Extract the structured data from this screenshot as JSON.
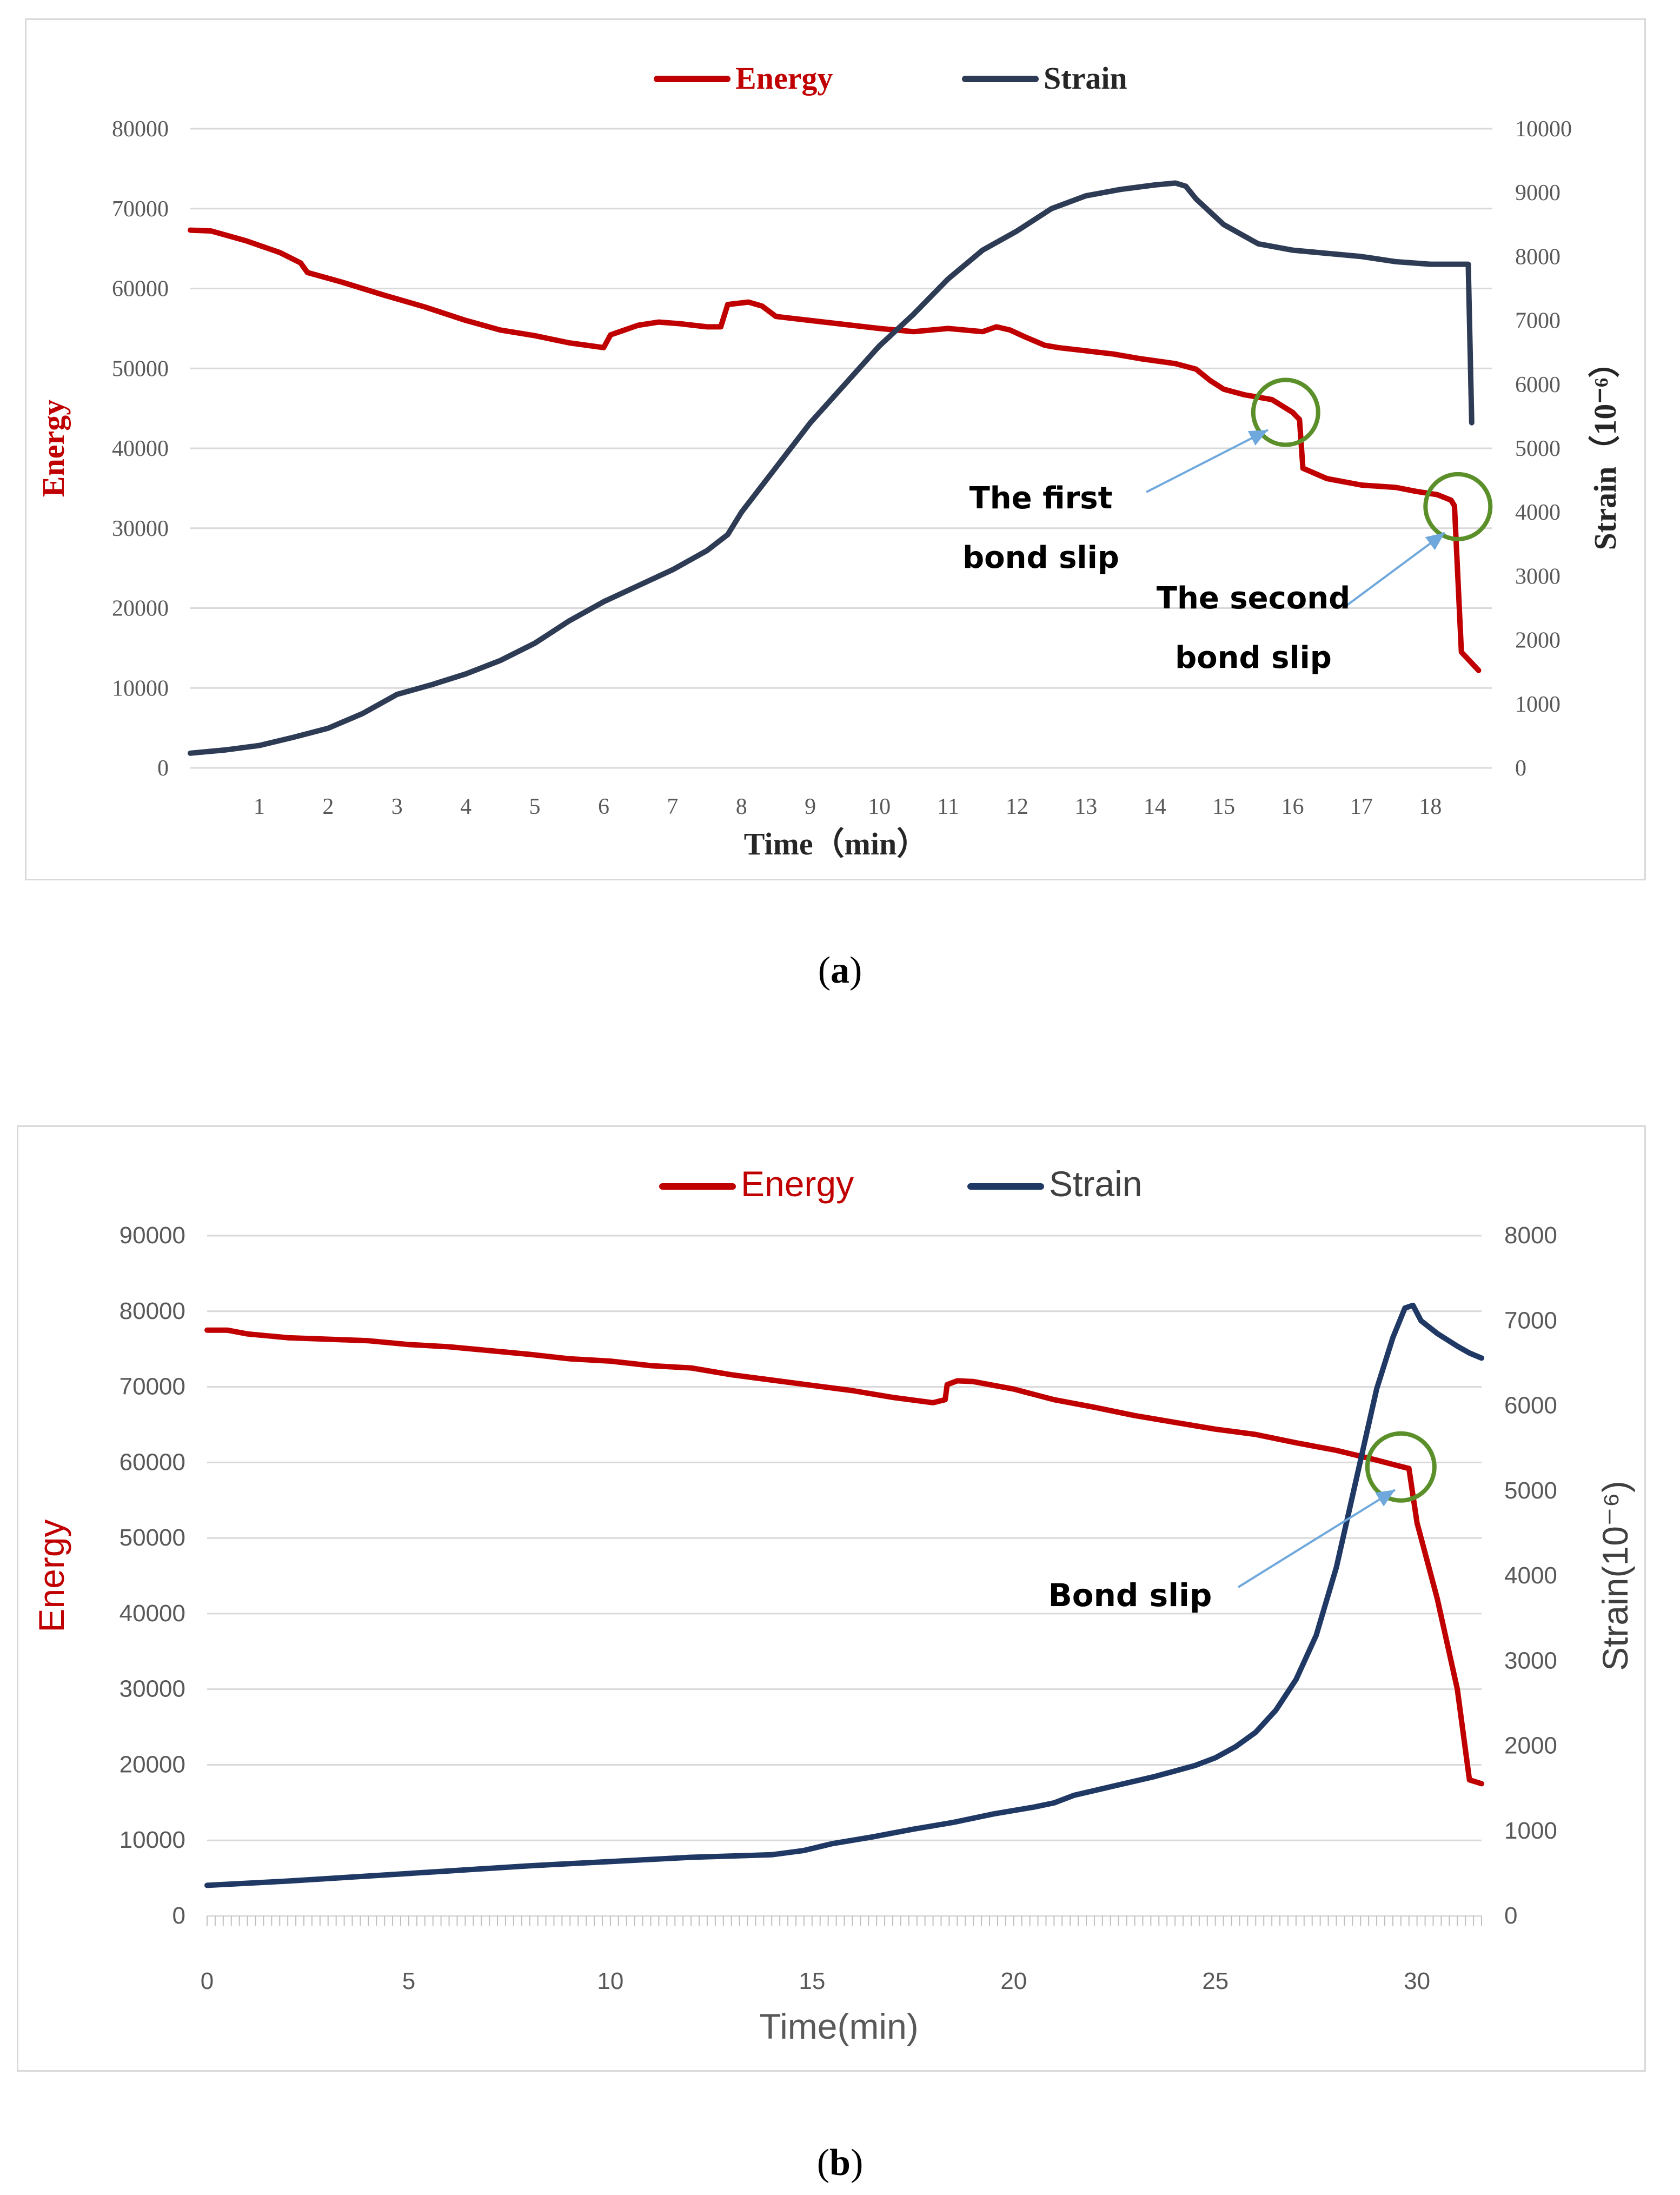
{
  "figure": {
    "caption_a": "a",
    "caption_b": "b"
  },
  "colors": {
    "energy": "#c00000",
    "strain": "#2e3b55",
    "strain_b": "#1f3864",
    "circle": "#5a8f29",
    "arrow": "#6fa8dc",
    "grid": "#d9d9d9",
    "axis_text": "#595959"
  },
  "chart_data": [
    {
      "type": "line",
      "id": "a",
      "xlabel": "Time（min）",
      "ylabel": "Energy",
      "y2label": "Strain（10⁻⁶）",
      "xlim": [
        0,
        18.9
      ],
      "ylim": [
        0,
        80000
      ],
      "y2lim": [
        0,
        10000
      ],
      "xticks": [
        1,
        2,
        3,
        4,
        5,
        6,
        7,
        8,
        9,
        10,
        11,
        12,
        13,
        14,
        15,
        16,
        17,
        18
      ],
      "yticks": [
        0,
        10000,
        20000,
        30000,
        40000,
        50000,
        60000,
        70000,
        80000
      ],
      "y2ticks": [
        0,
        1000,
        2000,
        3000,
        4000,
        5000,
        6000,
        7000,
        8000,
        9000,
        10000
      ],
      "grid": true,
      "legend_placement": "top-center",
      "series": [
        {
          "name": "Energy",
          "axis": "left",
          "x": [
            0,
            0.3,
            0.8,
            1.3,
            1.6,
            1.7,
            2.2,
            2.8,
            3.4,
            4,
            4.5,
            5,
            5.5,
            6,
            6.1,
            6.5,
            6.8,
            7.1,
            7.5,
            7.7,
            7.8,
            8.1,
            8.3,
            8.5,
            8.7,
            9,
            9.5,
            10,
            10.5,
            11,
            11.5,
            11.7,
            11.9,
            12.1,
            12.4,
            12.6,
            13,
            13.4,
            13.8,
            14.3,
            14.6,
            14.8,
            15,
            15.3,
            15.7,
            16,
            16.1,
            16.15,
            16.5,
            17,
            17.5,
            17.8,
            18.1,
            18.3,
            18.35,
            18.45,
            18.7
          ],
          "values": [
            67300,
            67200,
            66000,
            64500,
            63200,
            62000,
            60800,
            59200,
            57700,
            56000,
            54800,
            54100,
            53200,
            52600,
            54200,
            55400,
            55800,
            55600,
            55200,
            55200,
            58000,
            58300,
            57800,
            56500,
            56300,
            56000,
            55500,
            55000,
            54600,
            55000,
            54600,
            55200,
            54800,
            54000,
            52900,
            52600,
            52200,
            51800,
            51200,
            50600,
            49900,
            48500,
            47400,
            46700,
            46100,
            44500,
            43600,
            37500,
            36200,
            35400,
            35100,
            34600,
            34200,
            33500,
            32800,
            14500,
            12200
          ]
        },
        {
          "name": "Strain",
          "axis": "right",
          "x": [
            0,
            0.5,
            1,
            1.5,
            2,
            2.5,
            3,
            3.5,
            4,
            4.5,
            5,
            5.5,
            6,
            6.5,
            7,
            7.5,
            7.8,
            8,
            8.5,
            9,
            9.5,
            10,
            10.5,
            11,
            11.5,
            12,
            12.5,
            13,
            13.5,
            14,
            14.3,
            14.45,
            14.6,
            15,
            15.5,
            16,
            16.5,
            17,
            17.5,
            18,
            18.5,
            18.55,
            18.6
          ],
          "values": [
            230,
            280,
            350,
            480,
            620,
            850,
            1150,
            1300,
            1470,
            1680,
            1950,
            2300,
            2600,
            2850,
            3100,
            3400,
            3650,
            4000,
            4700,
            5400,
            6000,
            6600,
            7100,
            7650,
            8100,
            8400,
            8750,
            8950,
            9050,
            9120,
            9150,
            9100,
            8900,
            8500,
            8200,
            8100,
            8050,
            8000,
            7920,
            7880,
            7880,
            7880,
            5400
          ]
        }
      ],
      "annotations": [
        {
          "text_line1": "The first",
          "text_line2": "bond slip",
          "x": 15.9,
          "y": 44500
        },
        {
          "text_line1": "The second",
          "text_line2": "bond slip",
          "x": 18.4,
          "y": 32700
        }
      ]
    },
    {
      "type": "line",
      "id": "b",
      "xlabel": "Time(min)",
      "ylabel": "Energy",
      "y2label": "Strain(10⁻⁶)",
      "xlim": [
        0,
        31.6
      ],
      "ylim": [
        0,
        90000
      ],
      "y2lim": [
        0,
        8000
      ],
      "xticks": [
        0,
        5,
        10,
        15,
        20,
        25,
        30
      ],
      "yticks": [
        0,
        10000,
        20000,
        30000,
        40000,
        50000,
        60000,
        70000,
        80000,
        90000
      ],
      "y2ticks": [
        0,
        1000,
        2000,
        3000,
        4000,
        5000,
        6000,
        7000,
        8000
      ],
      "grid": true,
      "legend_placement": "top-center",
      "series": [
        {
          "name": "Energy",
          "axis": "left",
          "x": [
            0,
            0.5,
            1,
            2,
            3,
            4,
            5,
            6,
            7,
            8,
            9,
            10,
            11,
            12,
            13,
            14,
            15,
            16,
            17,
            18,
            18.3,
            18.35,
            18.6,
            19,
            19.5,
            20,
            21,
            22,
            23,
            24,
            25,
            26,
            27,
            28,
            29,
            29.5,
            29.8,
            30,
            30.5,
            31,
            31.3,
            31.6
          ],
          "values": [
            77500,
            77500,
            77000,
            76500,
            76300,
            76100,
            75600,
            75300,
            74800,
            74300,
            73700,
            73400,
            72800,
            72500,
            71600,
            70900,
            70200,
            69500,
            68600,
            67900,
            68300,
            70300,
            70800,
            70700,
            70200,
            69700,
            68300,
            67300,
            66200,
            65300,
            64400,
            63700,
            62600,
            61600,
            60300,
            59600,
            59200,
            52000,
            42000,
            30000,
            18000,
            17500
          ]
        },
        {
          "name": "Strain",
          "axis": "right",
          "x": [
            0,
            2,
            4,
            6,
            8,
            10,
            12,
            14,
            14.8,
            15.5,
            16.5,
            17.5,
            18.5,
            19.5,
            20.5,
            21,
            21.5,
            22.5,
            23.5,
            24.5,
            25,
            25.5,
            26,
            26.5,
            27,
            27.5,
            28,
            28.5,
            29,
            29.4,
            29.7,
            29.9,
            30.1,
            30.5,
            31,
            31.3,
            31.6
          ],
          "values": [
            360,
            410,
            470,
            530,
            590,
            640,
            690,
            720,
            770,
            850,
            930,
            1020,
            1100,
            1200,
            1280,
            1330,
            1420,
            1530,
            1640,
            1770,
            1860,
            1990,
            2160,
            2420,
            2780,
            3300,
            4100,
            5150,
            6200,
            6800,
            7150,
            7180,
            7000,
            6850,
            6700,
            6620,
            6560
          ]
        }
      ],
      "annotations": [
        {
          "text_line1": "Bond slip",
          "x": 29.6,
          "y": 59400
        }
      ]
    }
  ]
}
